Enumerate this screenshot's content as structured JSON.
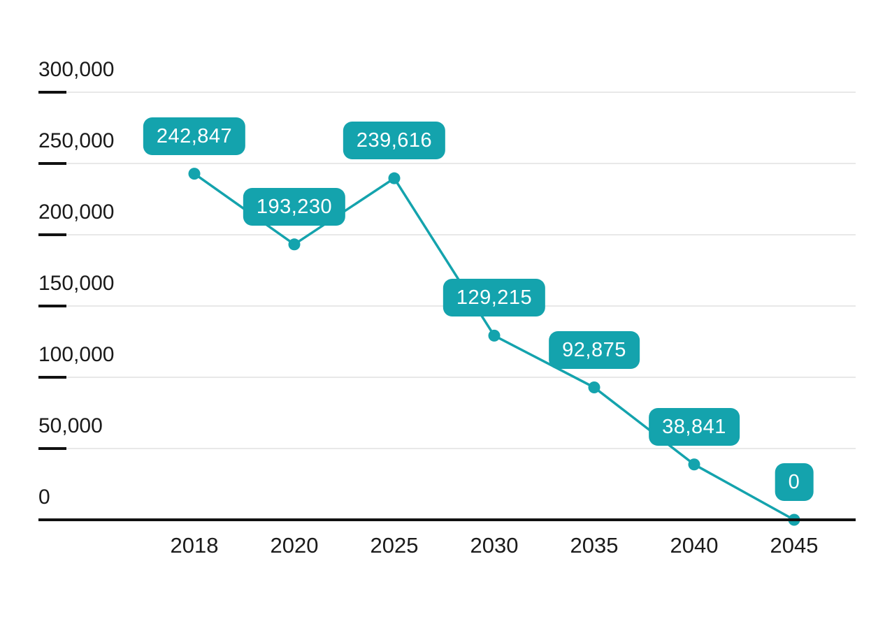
{
  "chart_data": {
    "type": "line",
    "title": "",
    "xlabel": "",
    "ylabel": "",
    "categories": [
      "2018",
      "2020",
      "2025",
      "2030",
      "2035",
      "2040",
      "2045"
    ],
    "values": [
      242847,
      193230,
      239616,
      129215,
      92875,
      38841,
      0
    ],
    "value_labels": [
      "242,847",
      "193,230",
      "239,616",
      "129,215",
      "92,875",
      "38,841",
      "0"
    ],
    "ylim": [
      0,
      300000
    ],
    "y_ticks": [
      300000,
      250000,
      200000,
      150000,
      100000,
      50000,
      0
    ],
    "y_tick_labels": [
      "300,000",
      "250,000",
      "200,000",
      "150,000",
      "100,000",
      "50,000",
      "0"
    ],
    "grid": true,
    "legend": "none",
    "colors": {
      "series": "#14a3ad",
      "marker": "#14a3ad",
      "label_bg": "#14a3ad",
      "label_text": "#ffffff",
      "gridline": "#e8e8e8",
      "tick": "#111111",
      "axis": "#111111",
      "axis_text": "#1a1a1a"
    }
  }
}
